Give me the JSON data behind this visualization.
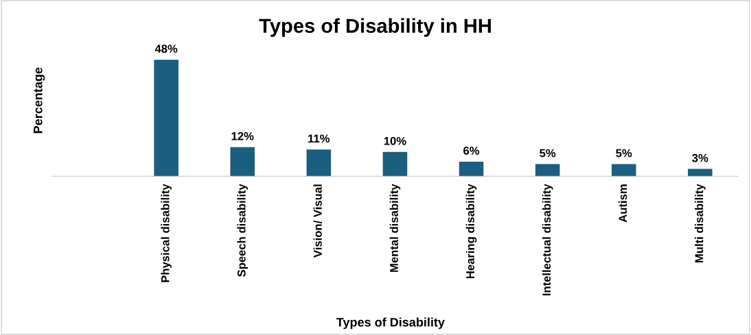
{
  "chart_data": {
    "type": "bar",
    "title": "Types of Disability in HH",
    "xlabel": "Types of Disability",
    "ylabel": "Percentage",
    "categories": [
      null,
      "Physical disability",
      "Speech disability",
      "Vision/ Visual",
      "Mental disability",
      "Hearing disability",
      "Intellectual disability",
      "Autism",
      "Multi disability"
    ],
    "values": [
      null,
      48,
      12,
      11,
      10,
      6,
      5,
      5,
      3
    ],
    "value_labels": [
      null,
      "48%",
      "12%",
      "11%",
      "10%",
      "6%",
      "5%",
      "5%",
      "3%"
    ],
    "color": "#1b5e80",
    "grid": false,
    "legend": false
  }
}
